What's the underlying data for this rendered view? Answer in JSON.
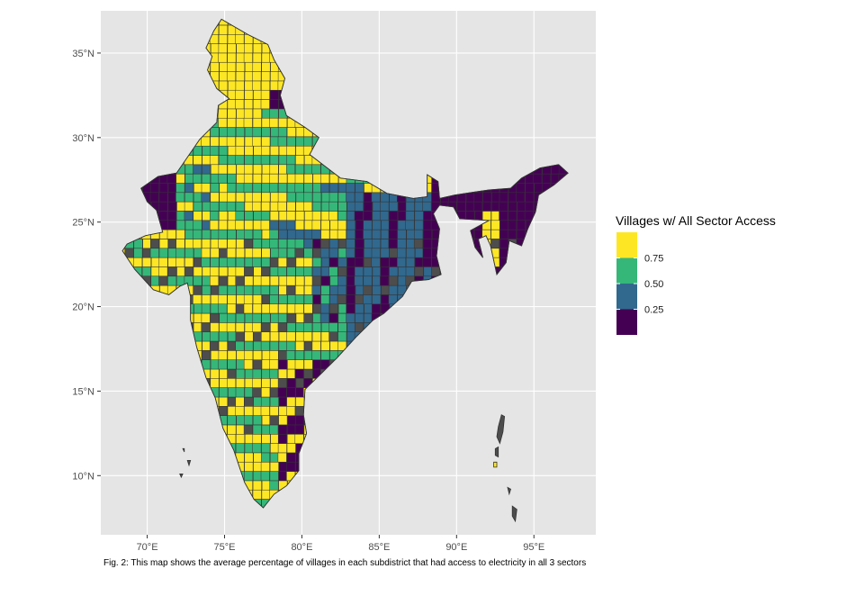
{
  "map": {
    "legend": {
      "title": "Villages w/ All Sector Access",
      "breaks": [
        {
          "label": "0.75",
          "value": 0.75
        },
        {
          "label": "0.50",
          "value": 0.5
        },
        {
          "label": "0.25",
          "value": 0.25
        }
      ],
      "colors": [
        "#440154",
        "#31688e",
        "#35b779",
        "#fde725"
      ]
    },
    "x_axis": {
      "ticks": [
        {
          "label": "70°E",
          "value": 70
        },
        {
          "label": "75°E",
          "value": 75
        },
        {
          "label": "80°E",
          "value": 80
        },
        {
          "label": "85°E",
          "value": 85
        },
        {
          "label": "90°E",
          "value": 90
        },
        {
          "label": "95°E",
          "value": 95
        }
      ],
      "range": [
        67,
        99
      ]
    },
    "y_axis": {
      "ticks": [
        {
          "label": "35°N",
          "value": 35
        },
        {
          "label": "30°N",
          "value": 30
        },
        {
          "label": "25°N",
          "value": 25
        },
        {
          "label": "20°N",
          "value": 20
        },
        {
          "label": "15°N",
          "value": 15
        },
        {
          "label": "10°N",
          "value": 10
        }
      ],
      "range": [
        6.5,
        37.5
      ]
    },
    "panel_background": "#e5e5e5",
    "grid_color": "#ffffff",
    "no_data_color": "#4d4d4d",
    "border_color": "#333333"
  },
  "caption": "Fig. 2: This map shows the average percentage of villages in each subdistrict that had access to electricity in all 3 sectors"
}
